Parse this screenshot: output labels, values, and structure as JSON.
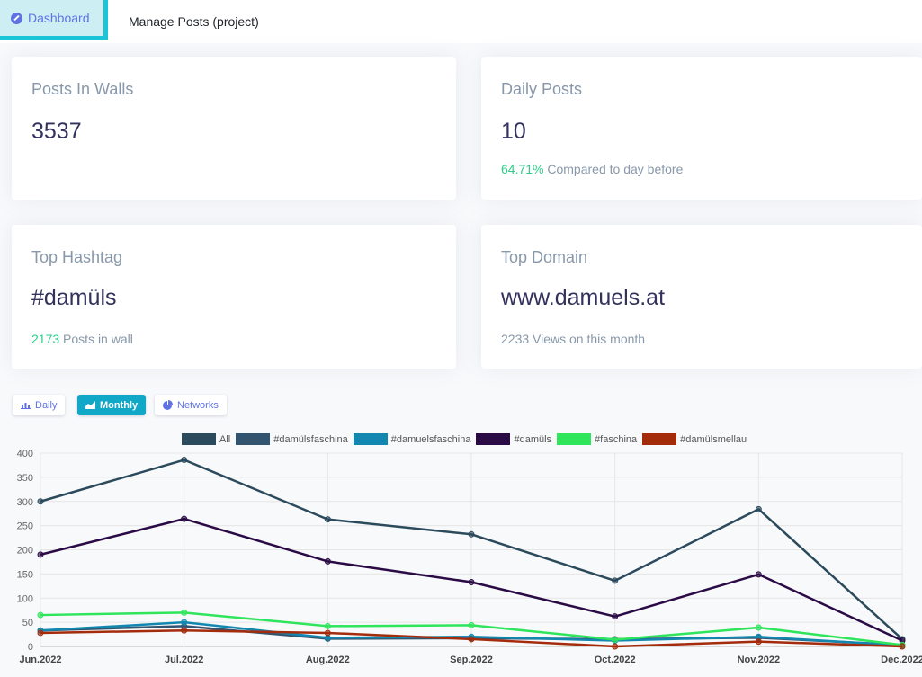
{
  "nav": {
    "active_tab": "Dashboard",
    "other_tab": "Manage Posts (project)"
  },
  "cards": {
    "posts_in_walls": {
      "title": "Posts In Walls",
      "value": "3537"
    },
    "daily_posts": {
      "title": "Daily Posts",
      "value": "10",
      "change": "64.71%",
      "change_label": "Compared to day before"
    },
    "top_hashtag": {
      "title": "Top Hashtag",
      "value": "#damüls",
      "count": "2173",
      "count_label": "Posts in wall"
    },
    "top_domain": {
      "title": "Top Domain",
      "value": "www.damuels.at",
      "footer": "2233 Views on this month"
    }
  },
  "chart_buttons": {
    "daily": "Daily",
    "monthly": "Monthly",
    "networks": "Networks"
  },
  "chart_data": {
    "type": "line",
    "categories": [
      "Jun.2022",
      "Jul.2022",
      "Aug.2022",
      "Sep.2022",
      "Oct.2022",
      "Nov.2022",
      "Dec.2022"
    ],
    "ylim": [
      0,
      400
    ],
    "yticks": [
      0,
      50,
      100,
      150,
      200,
      250,
      300,
      350,
      400
    ],
    "grid": true,
    "legend_placement": "top-center",
    "series": [
      {
        "name": "All",
        "color": "#2b4a5c",
        "values": [
          300,
          386,
          263,
          232,
          136,
          284,
          15
        ]
      },
      {
        "name": "#damülsfaschina",
        "color": "#33546f",
        "values": [
          33,
          42,
          16,
          17,
          15,
          18,
          3
        ]
      },
      {
        "name": "#damuelsfaschina",
        "color": "#1288b0",
        "values": [
          33,
          50,
          18,
          20,
          12,
          20,
          2
        ]
      },
      {
        "name": "#damüls",
        "color": "#2a0b45",
        "values": [
          190,
          264,
          176,
          133,
          62,
          149,
          12
        ]
      },
      {
        "name": "#faschina",
        "color": "#2fe55c",
        "values": [
          65,
          70,
          42,
          44,
          14,
          39,
          3
        ]
      },
      {
        "name": "#damülsmellau",
        "color": "#a42b0c",
        "values": [
          28,
          33,
          28,
          15,
          0,
          10,
          0
        ]
      }
    ]
  }
}
